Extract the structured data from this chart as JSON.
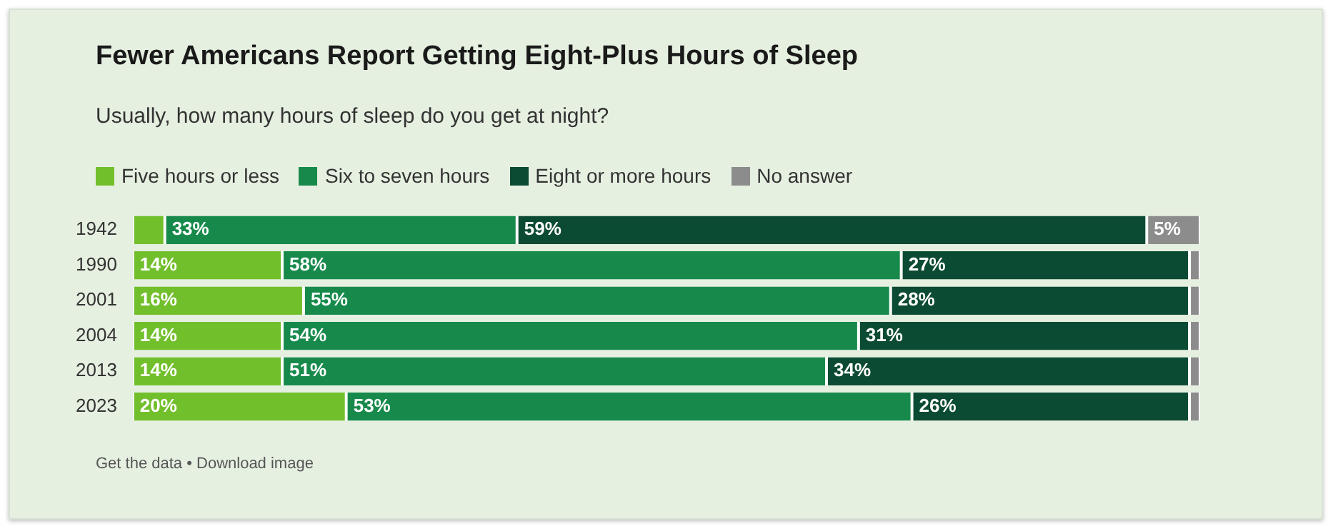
{
  "chart_data": {
    "type": "bar",
    "orientation": "horizontal",
    "stacked": true,
    "title": "Fewer Americans Report Getting Eight-Plus Hours of Sleep",
    "subtitle": "Usually, how many hours of sleep do you get at night?",
    "categories": [
      "1942",
      "1990",
      "2001",
      "2004",
      "2013",
      "2023"
    ],
    "xlim": [
      0,
      100
    ],
    "legend": "top left",
    "series": [
      {
        "name": "Five hours or less",
        "color": "#72bf2c",
        "values": [
          3,
          14,
          16,
          14,
          14,
          20
        ],
        "value_labels": [
          null,
          "14%",
          "16%",
          "14%",
          "14%",
          "20%"
        ]
      },
      {
        "name": "Six to seven hours",
        "color": "#178a4b",
        "values": [
          33,
          58,
          55,
          54,
          51,
          53
        ],
        "value_labels": [
          "33%",
          "58%",
          "55%",
          "54%",
          "51%",
          "53%"
        ]
      },
      {
        "name": "Eight or more hours",
        "color": "#0c4b33",
        "values": [
          59,
          27,
          28,
          31,
          34,
          26
        ],
        "value_labels": [
          "59%",
          "27%",
          "28%",
          "31%",
          "34%",
          "26%"
        ]
      },
      {
        "name": "No answer",
        "color": "#8c8c8c",
        "values": [
          5,
          1,
          1,
          1,
          1,
          1
        ],
        "value_labels": [
          "5%",
          null,
          null,
          null,
          null,
          null
        ]
      }
    ],
    "annotations": [
      "Get the data • Download image"
    ]
  }
}
